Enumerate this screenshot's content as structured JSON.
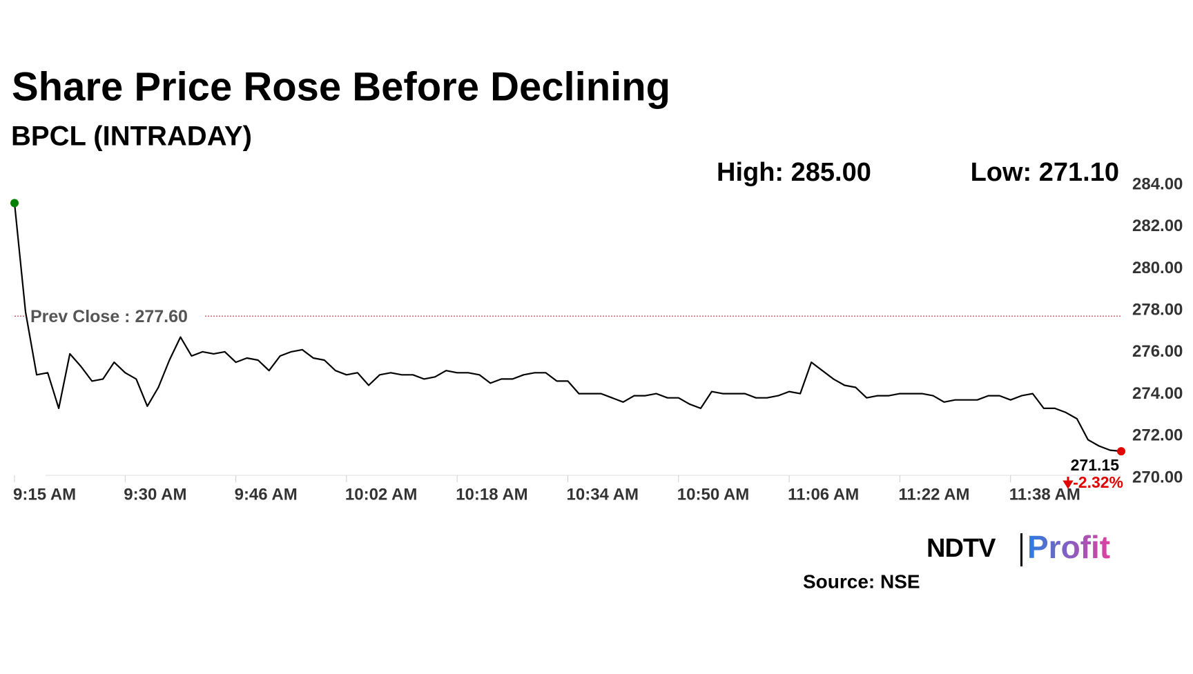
{
  "chart_data": {
    "type": "line",
    "title": "Share Price Rose Before Declining",
    "subtitle": "BPCL (INTRADAY)",
    "high_label": "High: 285.00",
    "low_label": "Low: 271.10",
    "prev_close": {
      "value": 277.6,
      "label": "Prev Close : 277.60"
    },
    "last_price_label": "271.15",
    "change_label": "-2.32%",
    "source": "Source: NSE",
    "brand": [
      "NDTV",
      "Profit"
    ],
    "categories": [
      "9:15 AM",
      null,
      null,
      null,
      null,
      null,
      null,
      null,
      null,
      null,
      "9:30 AM",
      null,
      null,
      null,
      null,
      null,
      null,
      null,
      null,
      null,
      "9:46 AM",
      null,
      null,
      null,
      null,
      null,
      null,
      null,
      null,
      null,
      "10:02 AM",
      null,
      null,
      null,
      null,
      null,
      null,
      null,
      null,
      null,
      "10:18 AM",
      null,
      null,
      null,
      null,
      null,
      null,
      null,
      null,
      null,
      "10:34 AM",
      null,
      null,
      null,
      null,
      null,
      null,
      null,
      null,
      null,
      "10:50 AM",
      null,
      null,
      null,
      null,
      null,
      null,
      null,
      null,
      null,
      "11:06 AM",
      null,
      null,
      null,
      null,
      null,
      null,
      null,
      null,
      null,
      "11:22 AM",
      null,
      null,
      null,
      null,
      null,
      null,
      null,
      null,
      null,
      "11:38 AM",
      null,
      null,
      null,
      null,
      null,
      null,
      null,
      null,
      null,
      null
    ],
    "series": [
      {
        "name": "BPCL",
        "color": "#000000",
        "values": [
          283.0,
          277.8,
          274.8,
          274.9,
          273.2,
          275.8,
          275.2,
          274.5,
          274.6,
          275.4,
          274.9,
          274.6,
          273.3,
          274.2,
          275.5,
          276.6,
          275.7,
          275.9,
          275.8,
          275.9,
          275.4,
          275.6,
          275.5,
          275.0,
          275.7,
          275.9,
          276.0,
          275.6,
          275.5,
          275.0,
          274.8,
          274.9,
          274.3,
          274.8,
          274.9,
          274.8,
          274.8,
          274.6,
          274.7,
          275.0,
          274.9,
          274.9,
          274.8,
          274.4,
          274.6,
          274.6,
          274.8,
          274.9,
          274.9,
          274.5,
          274.5,
          273.9,
          273.9,
          273.9,
          273.7,
          273.5,
          273.8,
          273.8,
          273.9,
          273.7,
          273.7,
          273.4,
          273.2,
          274.0,
          273.9,
          273.9,
          273.9,
          273.7,
          273.7,
          273.8,
          274.0,
          273.9,
          275.4,
          275.0,
          274.6,
          274.3,
          274.2,
          273.7,
          273.8,
          273.8,
          273.9,
          273.9,
          273.9,
          273.8,
          273.5,
          273.6,
          273.6,
          273.6,
          273.8,
          273.8,
          273.6,
          273.8,
          273.9,
          273.2,
          273.2,
          273.0,
          272.7,
          271.7,
          271.4,
          271.2,
          271.15
        ]
      }
    ],
    "start_color": "#008000",
    "end_color": "#e00000",
    "prev_close_color": "#d04040",
    "ylim": [
      270,
      284
    ],
    "yticks": [
      {
        "value": 270,
        "label": "270.00"
      },
      {
        "value": 272,
        "label": "272.00"
      },
      {
        "value": 274,
        "label": "274.00"
      },
      {
        "value": 276,
        "label": "276.00"
      },
      {
        "value": 278,
        "label": "278.00"
      },
      {
        "value": 280,
        "label": "280.00"
      },
      {
        "value": 282,
        "label": "282.00"
      },
      {
        "value": 284,
        "label": "284.00"
      }
    ]
  }
}
